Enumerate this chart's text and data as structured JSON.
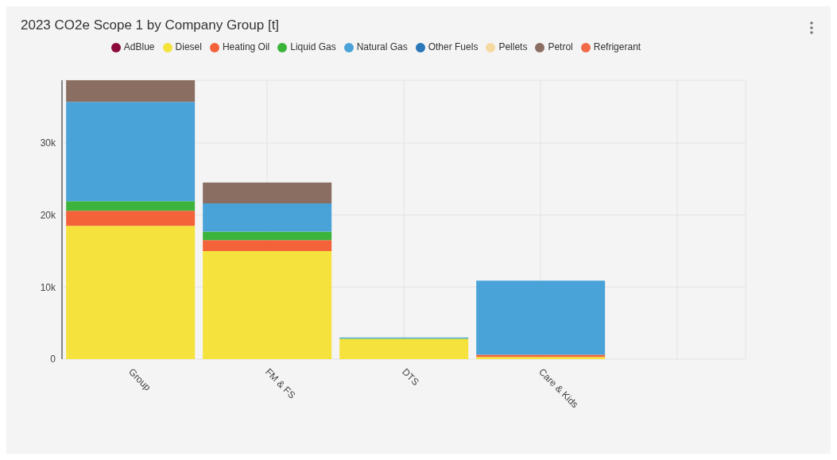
{
  "chart_data": {
    "type": "bar",
    "title": "2023 CO2e Scope 1 by Company Group [t]",
    "categories": [
      "Group",
      "FM & FS",
      "DTS",
      "Care & Kids",
      null
    ],
    "stacked": true,
    "series": [
      {
        "name": "AdBlue",
        "color": "#8b0a3a",
        "values": [
          0,
          0,
          0,
          0,
          0
        ]
      },
      {
        "name": "Diesel",
        "color": "#f5e23c",
        "values": [
          18500,
          15000,
          2800,
          300,
          0
        ]
      },
      {
        "name": "Heating Oil",
        "color": "#f4623a",
        "values": [
          2100,
          1500,
          0,
          300,
          0
        ]
      },
      {
        "name": "Liquid Gas",
        "color": "#3cb43c",
        "values": [
          1300,
          1200,
          100,
          0,
          0
        ]
      },
      {
        "name": "Natural Gas",
        "color": "#4aa3d8",
        "values": [
          13800,
          3900,
          100,
          10300,
          0
        ]
      },
      {
        "name": "Other Fuels",
        "color": "#2a78b8",
        "values": [
          0,
          0,
          0,
          0,
          0
        ]
      },
      {
        "name": "Pellets",
        "color": "#f5d9a0",
        "values": [
          0,
          0,
          0,
          0,
          0
        ]
      },
      {
        "name": "Petrol",
        "color": "#8a6e62",
        "values": [
          3000,
          2900,
          0,
          0,
          0
        ]
      },
      {
        "name": "Refrigerant",
        "color": "#f26a48",
        "values": [
          0,
          0,
          0,
          0,
          0
        ]
      }
    ],
    "ylim": [
      0,
      38700
    ],
    "yticks": [
      {
        "value": 0,
        "label": "0"
      },
      {
        "value": 10000,
        "label": "10k"
      },
      {
        "value": 20000,
        "label": "20k"
      },
      {
        "value": 30000,
        "label": "30k"
      }
    ],
    "grid": true,
    "legend": "top"
  }
}
